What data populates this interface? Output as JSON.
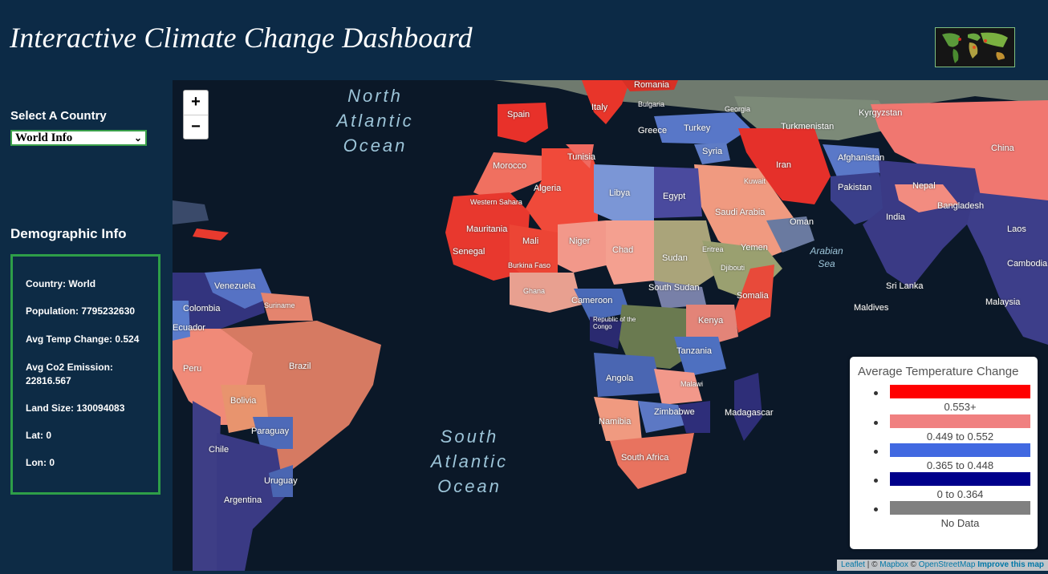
{
  "header": {
    "title": "Interactive Climate Change Dashboard"
  },
  "sidebar": {
    "select_label": "Select A Country",
    "select_value": "World Info",
    "demographic_title": "Demographic Info",
    "demographic": {
      "country": "Country: World",
      "population": "Population: 7795232630",
      "temp_change": "Avg Temp Change: 0.524",
      "co2": "Avg Co2 Emission: 22816.567",
      "land": "Land Size: 130094083",
      "lat": "Lat: 0",
      "lon": "Lon: 0"
    }
  },
  "map": {
    "zoom_in": "+",
    "zoom_out": "−",
    "oceans": {
      "north_atlantic": "North Atlantic Ocean",
      "south_atlantic": "South Atlantic Ocean",
      "arabian_sea": "Arabian Sea"
    },
    "country_labels": [
      "Romania",
      "Bulgaria",
      "Georgia",
      "Kyrgyzstan",
      "Turkmenistan",
      "Spain",
      "Italy",
      "Greece",
      "Turkey",
      "China",
      "Syria",
      "Tunisia",
      "Iran",
      "Afghanistan",
      "Morocco",
      "Algeria",
      "Libya",
      "Egypt",
      "Kuwait",
      "Pakistan",
      "Nepal",
      "Western Sahara",
      "Saudi Arabia",
      "Oman",
      "India",
      "Bangladesh",
      "Mauritania",
      "Mali",
      "Niger",
      "Chad",
      "Sudan",
      "Eritrea",
      "Yemen",
      "Laos",
      "Senegal",
      "Burkina Faso",
      "Djibouti",
      "Cambodia",
      "Ghana",
      "South Sudan",
      "Sri Lanka",
      "Venezuela",
      "Suriname",
      "Cameroon",
      "Somalia",
      "Malaysia",
      "Colombia",
      "Republic of the Congo",
      "Maldives",
      "Kenya",
      "Ecuador",
      "Tanzania",
      "Peru",
      "Brazil",
      "Angola",
      "Malawi",
      "Bolivia",
      "Namibia",
      "Zimbabwe",
      "Madagascar",
      "Paraguay",
      "Chile",
      "South Africa",
      "Uruguay",
      "Argentina"
    ]
  },
  "legend": {
    "title": "Average Temperature Change",
    "items": [
      {
        "label": "0.553+",
        "color": "#ff0000"
      },
      {
        "label": "0.449 to 0.552",
        "color": "#f08080"
      },
      {
        "label": "0.365 to 0.448",
        "color": "#4169e1"
      },
      {
        "label": "0 to 0.364",
        "color": "#00008b"
      },
      {
        "label": "No Data",
        "color": "#808080"
      }
    ]
  },
  "attribution": {
    "leaflet": "Leaflet",
    "sep1": " | © ",
    "mapbox": "Mapbox",
    "sep2": " © ",
    "osm": "OpenStreetMap",
    "improve": "Improve this map"
  }
}
